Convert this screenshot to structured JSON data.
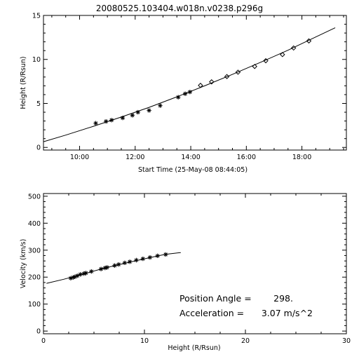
{
  "figure_title": "20080525.103404.w018n.v0238.p296g",
  "chart_data": [
    {
      "type": "scatter",
      "xlabel": "Start Time (25-May-08 08:44:05)",
      "ylabel": "Height (R/Rsun)",
      "xlim": [
        8.7,
        19.6
      ],
      "ylim": [
        -0.3,
        15.0
      ],
      "x_ticks": [
        10,
        12,
        14,
        16,
        18
      ],
      "x_tick_labels": [
        "10:00",
        "12:00",
        "14:00",
        "16:00",
        "18:00"
      ],
      "y_ticks": [
        0,
        5,
        10,
        15
      ],
      "y_tick_labels": [
        "0",
        "5",
        "10",
        "15"
      ],
      "series": [
        {
          "marker": "asterisk",
          "points": [
            [
              10.58,
              2.75
            ],
            [
              10.95,
              2.95
            ],
            [
              11.15,
              3.1
            ],
            [
              11.55,
              3.35
            ],
            [
              11.9,
              3.65
            ],
            [
              12.1,
              4.0
            ],
            [
              12.5,
              4.2
            ],
            [
              12.9,
              4.75
            ],
            [
              13.55,
              5.7
            ],
            [
              13.8,
              6.1
            ],
            [
              13.97,
              6.3
            ]
          ]
        },
        {
          "marker": "diamond",
          "points": [
            [
              14.35,
              7.05
            ],
            [
              14.75,
              7.45
            ],
            [
              15.3,
              8.05
            ],
            [
              15.7,
              8.55
            ],
            [
              16.3,
              9.2
            ],
            [
              16.7,
              9.85
            ],
            [
              17.3,
              10.55
            ],
            [
              17.7,
              11.3
            ],
            [
              18.25,
              12.1
            ]
          ]
        },
        {
          "marker": "line",
          "points": [
            [
              8.7,
              0.65
            ],
            [
              9.5,
              1.4
            ],
            [
              10.5,
              2.4
            ],
            [
              11.5,
              3.45
            ],
            [
              12.5,
              4.55
            ],
            [
              13.5,
              5.75
            ],
            [
              14.5,
              7.0
            ],
            [
              15.5,
              8.3
            ],
            [
              16.5,
              9.65
            ],
            [
              17.5,
              11.05
            ],
            [
              18.5,
              12.55
            ],
            [
              19.2,
              13.6
            ]
          ]
        }
      ]
    },
    {
      "type": "scatter",
      "xlabel": "Height (R/Rsun)",
      "ylabel": "Velocity (km/s)",
      "xlim": [
        0,
        30
      ],
      "ylim": [
        -10,
        510
      ],
      "x_ticks": [
        0,
        10,
        20,
        30
      ],
      "x_tick_labels": [
        "0",
        "10",
        "20",
        "30"
      ],
      "y_ticks": [
        0,
        100,
        200,
        300,
        400,
        500
      ],
      "y_tick_labels": [
        "0",
        "100",
        "200",
        "300",
        "400",
        "500"
      ],
      "series": [
        {
          "marker": "asterisk",
          "points": [
            [
              2.7,
              196
            ],
            [
              2.95,
              199
            ],
            [
              3.1,
              201
            ],
            [
              3.35,
              205
            ],
            [
              3.65,
              210
            ],
            [
              4.0,
              213
            ],
            [
              4.2,
              215
            ],
            [
              4.75,
              221
            ],
            [
              5.7,
              230
            ],
            [
              6.1,
              234
            ],
            [
              6.3,
              236
            ],
            [
              7.05,
              243
            ],
            [
              7.45,
              247
            ],
            [
              8.05,
              253
            ],
            [
              8.55,
              257
            ],
            [
              9.2,
              263
            ],
            [
              9.85,
              268
            ],
            [
              10.55,
              273
            ],
            [
              11.3,
              279
            ],
            [
              12.1,
              284
            ]
          ]
        },
        {
          "marker": "line",
          "points": [
            [
              0.3,
              177
            ],
            [
              2,
              192
            ],
            [
              4,
              212
            ],
            [
              6,
              233
            ],
            [
              8,
              251
            ],
            [
              10,
              268
            ],
            [
              12,
              284
            ],
            [
              13.6,
              291
            ]
          ]
        }
      ],
      "annotations": [
        {
          "label": "Position Angle =",
          "value": "298."
        },
        {
          "label": "Acceleration =",
          "value": "3.07 m/s^2"
        }
      ]
    }
  ]
}
